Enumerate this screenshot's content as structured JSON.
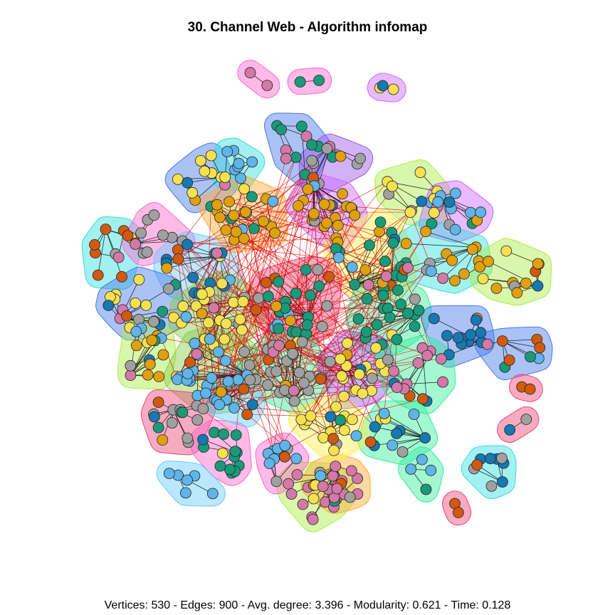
{
  "title": "30. Channel Web - Algorithm infomap",
  "footer": "Vertices: 530 - Edges: 900 - Avg. degree: 3.396 - Modularity: 0.621 - Time: 0.128",
  "colors": {
    "node_palette": [
      "#f5e050",
      "#e0a010",
      "#d05a10",
      "#1a9a78",
      "#1878b0",
      "#60b4e8",
      "#d478a8",
      "#a0a0a0"
    ],
    "community_fills": [
      "#ff66cc",
      "#66ccff",
      "#4477ee",
      "#9955ee",
      "#33ee99",
      "#aaee44",
      "#ffaa33",
      "#ee4477",
      "#33dddd",
      "#cc66ff",
      "#ffee44",
      "#88cc44"
    ],
    "intra_edge": "#000000",
    "inter_edge": "#dd0000"
  }
}
